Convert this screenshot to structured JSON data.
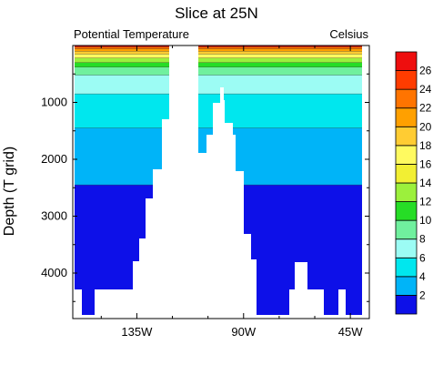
{
  "chart_data": {
    "type": "heatmap",
    "title": "Slice at 25N",
    "subtitle_left": "Potential Temperature",
    "subtitle_right": "Celsius",
    "ylabel": "Depth (T grid)",
    "xlabel": "",
    "x_lon_range": [
      162,
      37
    ],
    "y_depth_range": [
      0,
      4800
    ],
    "x_ticks": [
      {
        "value": 135,
        "label": "135W"
      },
      {
        "value": 90,
        "label": "90W"
      },
      {
        "value": 45,
        "label": "45W"
      }
    ],
    "y_ticks": [
      {
        "value": 1000,
        "label": "1000"
      },
      {
        "value": 2000,
        "label": "2000"
      },
      {
        "value": 3000,
        "label": "3000"
      },
      {
        "value": 4000,
        "label": "4000"
      }
    ],
    "colorbar_levels": [
      {
        "label": "2",
        "color": "#0d10e8"
      },
      {
        "label": "4",
        "color": "#00b4f8"
      },
      {
        "label": "6",
        "color": "#00e7ee"
      },
      {
        "label": "8",
        "color": "#9cfcf4"
      },
      {
        "label": "10",
        "color": "#70f09e"
      },
      {
        "label": "12",
        "color": "#26dd26"
      },
      {
        "label": "14",
        "color": "#9cf03c"
      },
      {
        "label": "16",
        "color": "#f2ef33"
      },
      {
        "label": "18",
        "color": "#fffa60"
      },
      {
        "label": "20",
        "color": "#ffcc33"
      },
      {
        "label": "22",
        "color": "#ffa000"
      },
      {
        "label": "24",
        "color": "#ff7400"
      },
      {
        "label": "26",
        "color": "#ff3c00"
      },
      {
        "label": "",
        "color": "#ee0e0e"
      }
    ],
    "water_bands": [
      {
        "temp_label": "<2",
        "color": "#0d10e8",
        "depth_top": 2450,
        "depth_bottom": 4800
      },
      {
        "temp_label": "2-4",
        "color": "#00b4f8",
        "depth_top": 1450,
        "depth_bottom": 2450
      },
      {
        "temp_label": "4-6",
        "color": "#00e7ee",
        "depth_top": 850,
        "depth_bottom": 1450
      },
      {
        "temp_label": "6-8",
        "color": "#9cfcf4",
        "depth_top": 520,
        "depth_bottom": 850
      },
      {
        "temp_label": "8-10",
        "color": "#70f09e",
        "depth_top": 380,
        "depth_bottom": 520
      },
      {
        "temp_label": "10-12",
        "color": "#26dd26",
        "depth_top": 300,
        "depth_bottom": 380
      },
      {
        "temp_label": "12-16",
        "color": "#9cf03c",
        "depth_top": 220,
        "depth_bottom": 300
      },
      {
        "temp_label": "16-20",
        "color": "#fffa60",
        "depth_top": 150,
        "depth_bottom": 220
      },
      {
        "temp_label": "20-22",
        "color": "#ffcc33",
        "depth_top": 100,
        "depth_bottom": 150
      },
      {
        "temp_label": "22-24",
        "color": "#ffa000",
        "depth_top": 60,
        "depth_bottom": 100
      },
      {
        "temp_label": "24-26",
        "color": "#ff7400",
        "depth_top": 25,
        "depth_bottom": 60
      },
      {
        "temp_label": ">26",
        "color": "#ee0e0e",
        "depth_top": 0,
        "depth_bottom": 25
      }
    ],
    "land_color": "#ffffff",
    "grid": false
  }
}
